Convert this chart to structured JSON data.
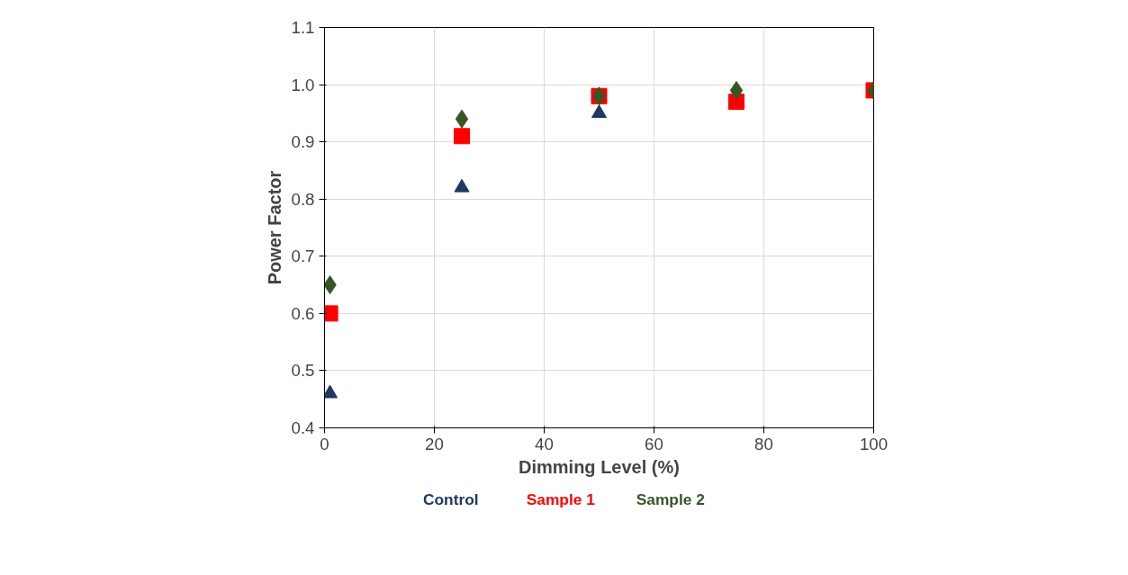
{
  "chart_data": {
    "type": "scatter",
    "xlabel": "Dimming Level (%)",
    "ylabel": "Power Factor",
    "x": [
      1,
      25,
      50,
      75,
      100
    ],
    "series": [
      {
        "name": "Control",
        "color": "#1f3864",
        "marker": "triangle",
        "values": [
          0.46,
          0.82,
          0.95,
          null,
          null
        ]
      },
      {
        "name": "Sample 1",
        "color": "#ff0000",
        "marker": "square",
        "values": [
          0.6,
          0.91,
          0.98,
          0.97,
          0.99
        ]
      },
      {
        "name": "Sample 2",
        "color": "#375623",
        "marker": "diamond",
        "values": [
          0.65,
          0.94,
          0.98,
          0.99,
          0.99
        ]
      }
    ],
    "xlim": [
      0,
      100
    ],
    "xticks": [
      0,
      20,
      40,
      60,
      80,
      100
    ],
    "ylim": [
      0.4,
      1.1
    ],
    "yticks": [
      {
        "value": 0.4,
        "label": "0.4"
      },
      {
        "value": 0.5,
        "label": "0.5"
      },
      {
        "value": 0.6,
        "label": "0.6"
      },
      {
        "value": 0.7,
        "label": "0.7"
      },
      {
        "value": 0.8,
        "label": "0.8"
      },
      {
        "value": 0.9,
        "label": "0.9"
      },
      {
        "value": 1.0,
        "label": "1.0"
      },
      {
        "value": 1.1,
        "label": "1.1"
      }
    ],
    "grid": true,
    "legend": "bottom"
  }
}
